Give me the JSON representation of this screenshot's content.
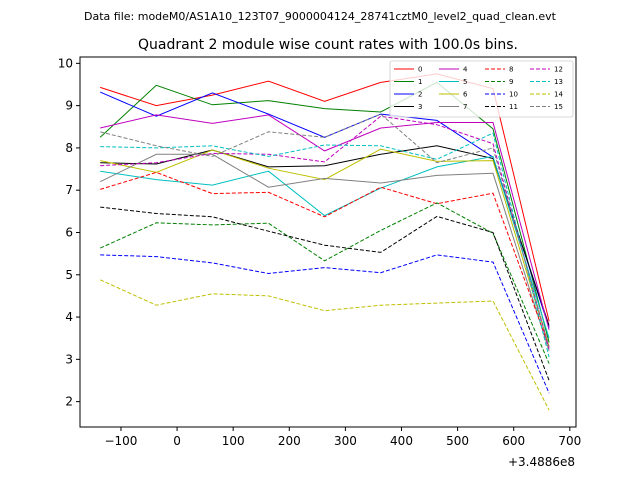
{
  "chart_data": {
    "type": "line",
    "suptitle": "Data file: modeM0/AS1A10_123T07_9000004124_28741cztM0_level2_quad_clean.evt",
    "title": "Quadrant 2 module wise count rates with 100.0s bins.",
    "xlabel": "",
    "ylabel": "",
    "x_offset_label": "+3.4886e8",
    "xlim": [
      -173,
      711
    ],
    "ylim": [
      1.4,
      10.15
    ],
    "x_ticks": [
      -100,
      0,
      100,
      200,
      300,
      400,
      500,
      600,
      700
    ],
    "x_tick_labels": [
      "−100",
      "0",
      "100",
      "200",
      "300",
      "400",
      "500",
      "600",
      "700"
    ],
    "y_ticks": [
      2,
      3,
      4,
      5,
      6,
      7,
      8,
      9,
      10
    ],
    "y_tick_labels": [
      "2",
      "3",
      "4",
      "5",
      "6",
      "7",
      "8",
      "9",
      "10"
    ],
    "legend_position": "upper right",
    "x": [
      -137,
      -37,
      63,
      163,
      263,
      363,
      463,
      563,
      663
    ],
    "series": [
      {
        "name": "0",
        "color": "#ff0000",
        "dash": "solid",
        "values": [
          9.43,
          9.0,
          9.25,
          9.58,
          9.1,
          9.55,
          9.75,
          9.4,
          3.9
        ]
      },
      {
        "name": "1",
        "color": "#008000",
        "dash": "solid",
        "values": [
          8.25,
          9.48,
          9.02,
          9.12,
          8.93,
          8.85,
          9.55,
          8.45,
          3.4
        ]
      },
      {
        "name": "2",
        "color": "#0000ff",
        "dash": "solid",
        "values": [
          9.32,
          8.75,
          9.3,
          8.8,
          8.25,
          8.8,
          8.65,
          7.78,
          3.75
        ]
      },
      {
        "name": "3",
        "color": "#000000",
        "dash": "solid",
        "values": [
          7.65,
          7.62,
          7.95,
          7.55,
          7.58,
          7.85,
          8.05,
          7.75,
          3.8
        ]
      },
      {
        "name": "4",
        "color": "#bf00bf",
        "dash": "solid",
        "values": [
          8.47,
          8.78,
          8.58,
          8.78,
          7.93,
          8.47,
          8.6,
          8.6,
          3.7
        ]
      },
      {
        "name": "5",
        "color": "#00bfbf",
        "dash": "solid",
        "values": [
          7.45,
          7.25,
          7.12,
          7.45,
          6.4,
          7.05,
          7.55,
          7.8,
          3.5
        ]
      },
      {
        "name": "6",
        "color": "#bfbf00",
        "dash": "solid",
        "values": [
          7.7,
          7.42,
          7.95,
          7.52,
          7.25,
          7.97,
          7.68,
          7.7,
          3.3
        ]
      },
      {
        "name": "7",
        "color": "#808080",
        "dash": "solid",
        "values": [
          7.2,
          7.85,
          7.85,
          7.07,
          7.28,
          7.17,
          7.35,
          7.4,
          3.2
        ]
      },
      {
        "name": "8",
        "color": "#ff0000",
        "dash": "dashed",
        "values": [
          7.02,
          7.42,
          6.92,
          6.95,
          6.37,
          7.07,
          6.68,
          6.93,
          3.3
        ]
      },
      {
        "name": "9",
        "color": "#008000",
        "dash": "dashed",
        "values": [
          5.63,
          6.23,
          6.18,
          6.22,
          5.33,
          6.05,
          6.7,
          5.98,
          2.9
        ]
      },
      {
        "name": "10",
        "color": "#0000ff",
        "dash": "dashed",
        "values": [
          5.47,
          5.43,
          5.28,
          5.03,
          5.17,
          5.05,
          5.47,
          5.3,
          2.2
        ]
      },
      {
        "name": "11",
        "color": "#000000",
        "dash": "dashed",
        "values": [
          6.6,
          6.45,
          6.37,
          6.03,
          5.7,
          5.53,
          6.38,
          6.0,
          2.5
        ]
      },
      {
        "name": "12",
        "color": "#bf00bf",
        "dash": "dashed",
        "values": [
          7.58,
          7.65,
          7.87,
          7.85,
          7.67,
          8.75,
          8.55,
          8.1,
          3.25
        ]
      },
      {
        "name": "13",
        "color": "#00bfbf",
        "dash": "dashed",
        "values": [
          8.03,
          8.0,
          8.05,
          7.8,
          8.07,
          8.05,
          7.73,
          8.35,
          3.05
        ]
      },
      {
        "name": "14",
        "color": "#bfbf00",
        "dash": "dashed",
        "values": [
          4.88,
          4.28,
          4.55,
          4.5,
          4.15,
          4.28,
          4.33,
          4.38,
          1.8
        ]
      },
      {
        "name": "15",
        "color": "#808080",
        "dash": "dashed",
        "values": [
          8.38,
          8.05,
          7.8,
          8.38,
          8.25,
          8.8,
          7.65,
          8.0,
          3.3
        ]
      }
    ]
  }
}
